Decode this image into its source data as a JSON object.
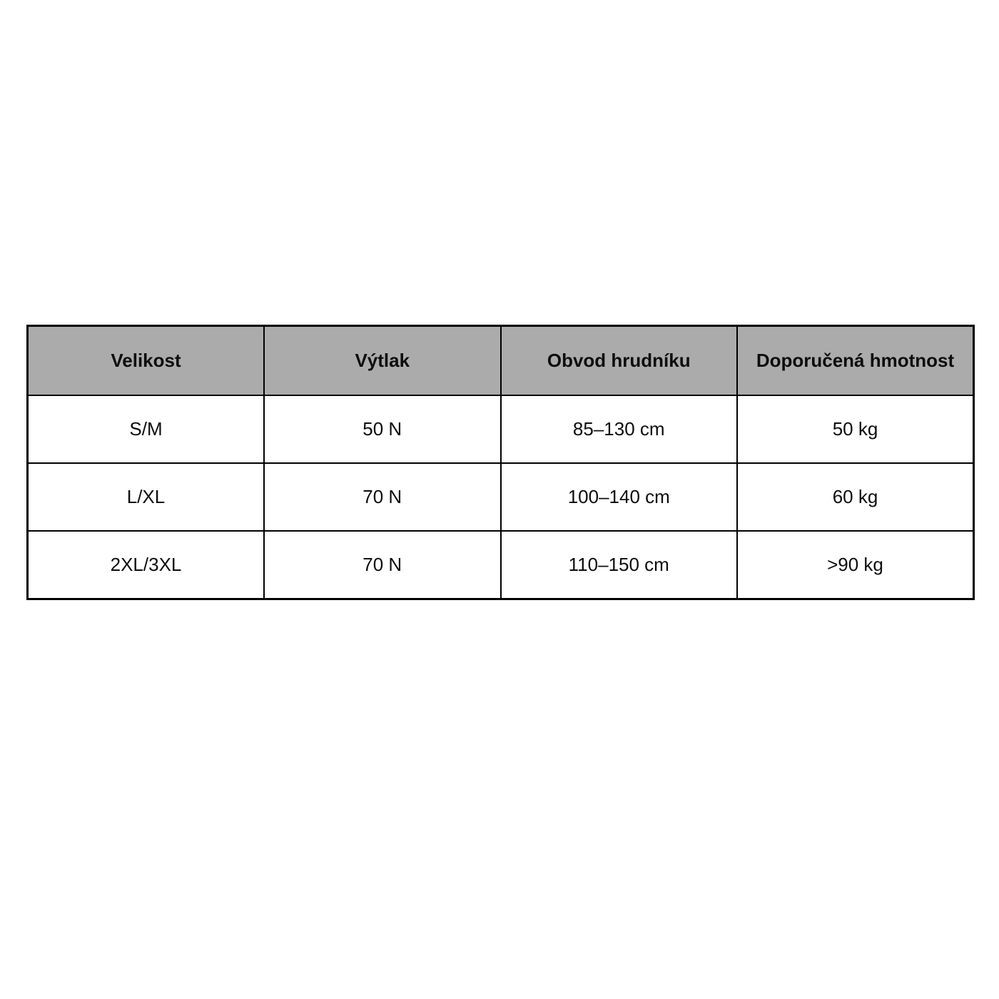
{
  "chart_data": {
    "type": "table",
    "title": "",
    "columns": [
      "Velikost",
      "Výtlak",
      "Obvod hrudníku",
      "Doporučená hmotnost"
    ],
    "rows": [
      [
        "S/M",
        "50 N",
        "85–130 cm",
        "50 kg"
      ],
      [
        "L/XL",
        "70 N",
        "100–140 cm",
        "60 kg"
      ],
      [
        "2XL/3XL",
        "70 N",
        "110–150 cm",
        ">90 kg"
      ]
    ],
    "layout": {
      "header_bg": "#ababab",
      "border_color": "#000000",
      "body_bg": "#ffffff",
      "text_color": "#0d0d0d"
    }
  }
}
